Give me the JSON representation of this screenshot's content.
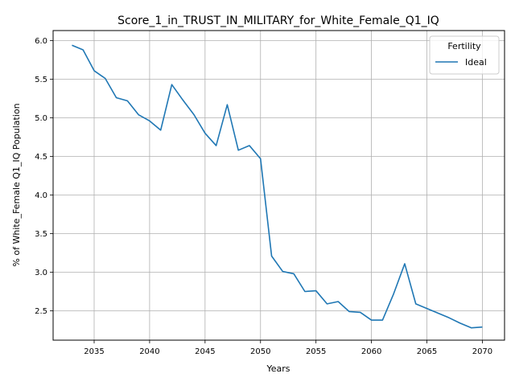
{
  "chart_data": {
    "type": "line",
    "title": "Score_1_in_TRUST_IN_MILITARY_for_White_Female_Q1_IQ",
    "xlabel": "Years",
    "ylabel": "% of White_Female Q1_IQ Population",
    "xlim": [
      2031.3,
      2072.0
    ],
    "ylim": [
      2.12,
      6.13
    ],
    "x_ticks": [
      2035,
      2040,
      2045,
      2050,
      2055,
      2060,
      2065,
      2070
    ],
    "y_ticks": [
      2.5,
      3.0,
      3.5,
      4.0,
      4.5,
      5.0,
      5.5,
      6.0
    ],
    "x_tick_labels": [
      "2035",
      "2040",
      "2045",
      "2050",
      "2055",
      "2060",
      "2065",
      "2070"
    ],
    "y_tick_labels": [
      "2.5",
      "3.0",
      "3.5",
      "4.0",
      "4.5",
      "5.0",
      "5.5",
      "6.0"
    ],
    "grid": true,
    "legend": {
      "title": "Fertility",
      "position": "top-right"
    },
    "series": [
      {
        "name": "Ideal",
        "color": "#1f77b4",
        "x": [
          2033,
          2034,
          2035,
          2036,
          2037,
          2038,
          2039,
          2040,
          2041,
          2042,
          2043,
          2044,
          2045,
          2046,
          2047,
          2048,
          2049,
          2050,
          2051,
          2052,
          2053,
          2054,
          2055,
          2056,
          2057,
          2058,
          2059,
          2060,
          2061,
          2062,
          2063,
          2064,
          2065,
          2066,
          2067,
          2068,
          2069,
          2070
        ],
        "y": [
          5.94,
          5.88,
          5.61,
          5.51,
          5.26,
          5.22,
          5.04,
          4.96,
          4.84,
          5.43,
          5.23,
          5.04,
          4.8,
          4.64,
          5.17,
          4.58,
          4.64,
          4.47,
          3.21,
          3.01,
          2.98,
          2.75,
          2.76,
          2.59,
          2.62,
          2.49,
          2.48,
          2.38,
          2.38,
          2.72,
          3.11,
          2.59,
          2.53,
          2.47,
          2.41,
          2.34,
          2.28,
          2.29
        ]
      }
    ]
  }
}
